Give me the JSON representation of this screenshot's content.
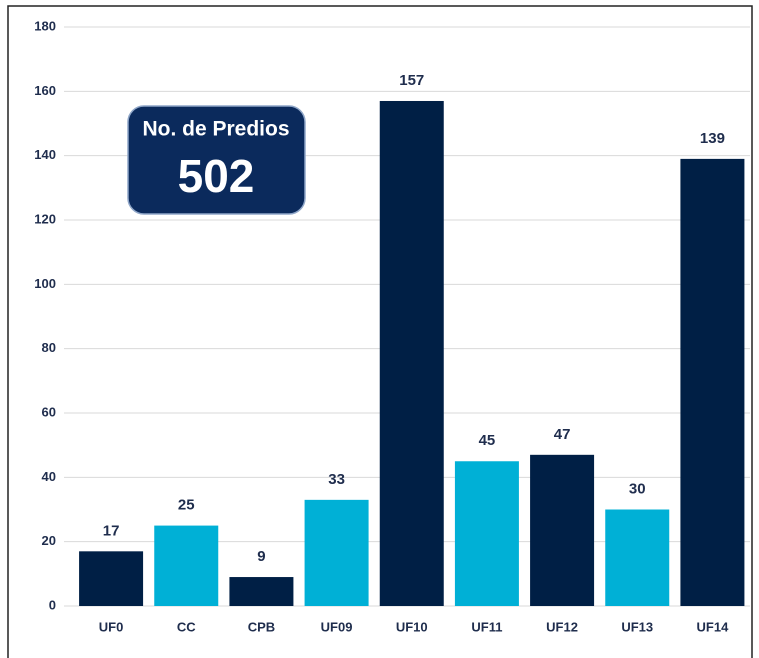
{
  "chart_data": {
    "type": "bar",
    "categories": [
      "UF0",
      "CC",
      "CPB",
      "UF09",
      "UF10",
      "UF11",
      "UF12",
      "UF13",
      "UF14"
    ],
    "values": [
      17,
      25,
      9,
      33,
      157,
      45,
      47,
      30,
      139
    ],
    "colors": [
      "#001f45",
      "#00b0d6",
      "#001f45",
      "#00b0d6",
      "#001f45",
      "#00b0d6",
      "#001f45",
      "#00b0d6",
      "#001f45"
    ],
    "ylim": [
      0,
      180
    ],
    "yticks": [
      0,
      20,
      40,
      60,
      80,
      100,
      120,
      140,
      160,
      180
    ],
    "grid": true,
    "annotation": {
      "title": "No. de Predios",
      "value": 502
    }
  }
}
